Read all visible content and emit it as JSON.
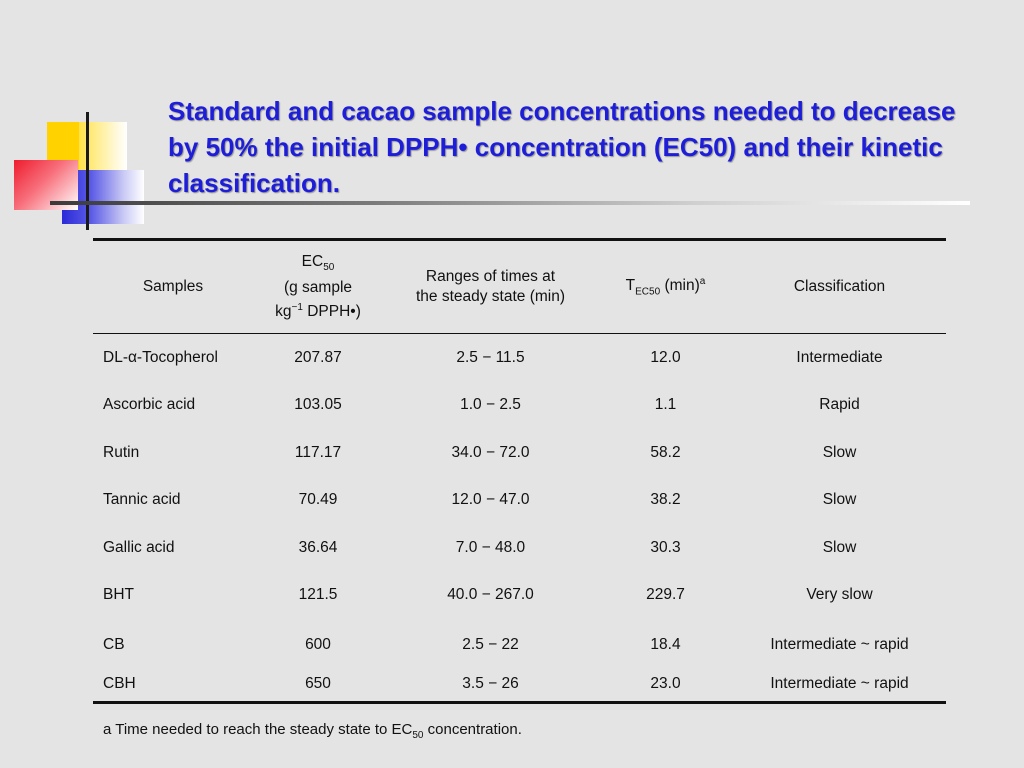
{
  "slide": {
    "title": "Standard and cacao sample concentrations needed to decrease by 50% the initial DPPH• concentration (EC50) and their kinetic classification."
  },
  "table": {
    "headers": {
      "samples": "Samples",
      "ec50_line1": "EC",
      "ec50_sub": "50",
      "ec50_line2": "(g sample",
      "ec50_line3a": "kg",
      "ec50_sup": "−1",
      "ec50_line3b": " DPPH•)",
      "range_line1": "Ranges of times at",
      "range_line2": "the steady state (min)",
      "t_main": "T",
      "t_sub": "EC50",
      "t_unit": " (min)",
      "t_sup": "a",
      "classification": "Classification"
    },
    "rows": [
      {
        "sample": "DL-α-Tocopherol",
        "ec50": "207.87",
        "range": "2.5 − 11.5",
        "t": "12.0",
        "class": "Intermediate"
      },
      {
        "sample": "Ascorbic acid",
        "ec50": "103.05",
        "range": "1.0 − 2.5",
        "t": "1.1",
        "class": "Rapid"
      },
      {
        "sample": "Rutin",
        "ec50": "117.17",
        "range": "34.0 − 72.0",
        "t": "58.2",
        "class": "Slow"
      },
      {
        "sample": "Tannic acid",
        "ec50": "70.49",
        "range": "12.0 − 47.0",
        "t": "38.2",
        "class": "Slow"
      },
      {
        "sample": "Gallic acid",
        "ec50": "36.64",
        "range": "7.0 − 48.0",
        "t": "30.3",
        "class": "Slow"
      },
      {
        "sample": "BHT",
        "ec50": "121.5",
        "range": "40.0 −  267.0",
        "t": "229.7",
        "class": "Very slow"
      },
      {
        "sample": "CB",
        "ec50": "600",
        "range": "2.5 − 22",
        "t": "18.4",
        "class": "Intermediate ~ rapid"
      },
      {
        "sample": "CBH",
        "ec50": "650",
        "range": "3.5 − 26",
        "t": "23.0",
        "class": "Intermediate ~ rapid"
      }
    ]
  },
  "footnote": {
    "text_before": "a Time needed to reach the steady state to EC",
    "sub": "50",
    "text_after": " concentration."
  }
}
